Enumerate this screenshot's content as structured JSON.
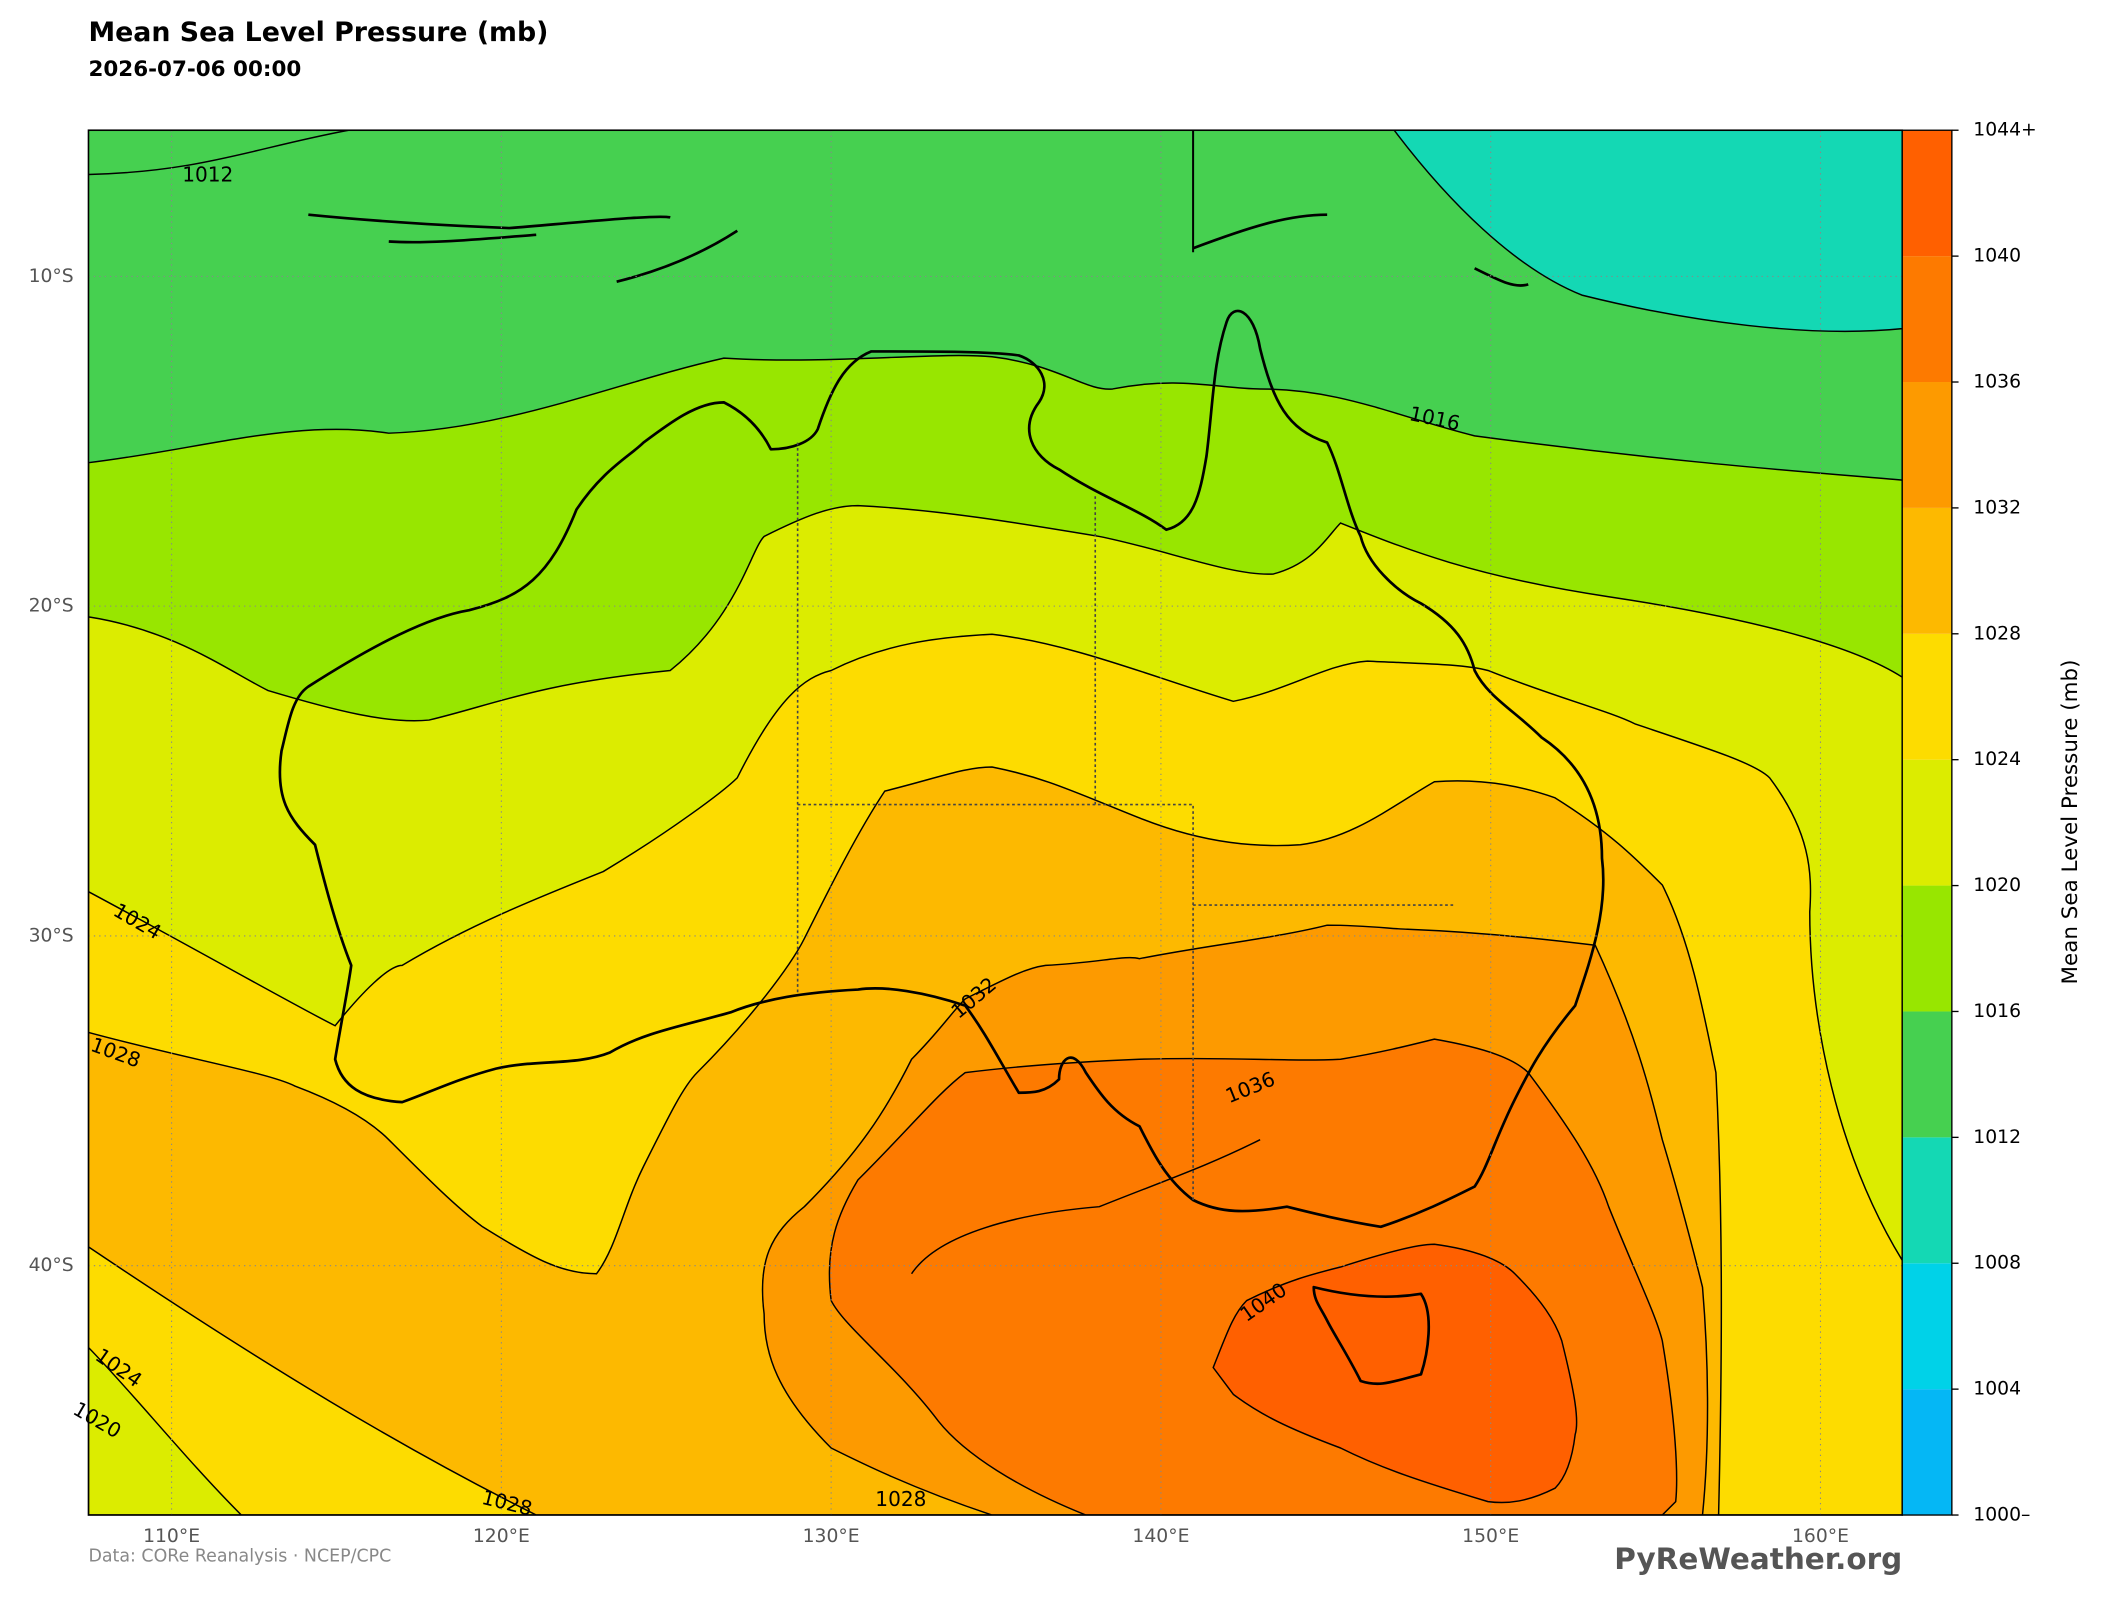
{
  "header": {
    "title": "Mean Sea Level Pressure (mb)",
    "subtitle": "2026-07-06 00:00"
  },
  "map": {
    "lat_labels": [
      "10°S",
      "20°S",
      "30°S",
      "40°S"
    ],
    "lon_labels": [
      "110°E",
      "120°E",
      "130°E",
      "140°E",
      "150°E",
      "160°E"
    ],
    "contour_labels": [
      "1012",
      "1016",
      "1024",
      "1028",
      "1032",
      "1036",
      "1040",
      "1024",
      "1028",
      "1028",
      "1020"
    ]
  },
  "colorbar": {
    "label": "Mean Sea Level Pressure (mb)",
    "ticks": [
      {
        "value": 1000,
        "label": "1000–"
      },
      1004,
      1008,
      1012,
      1016,
      1020,
      1024,
      1028,
      1032,
      1036,
      1040,
      {
        "value": 1044,
        "label": "1044+"
      }
    ],
    "colors": [
      "#05b7f5",
      "#00d2e8",
      "#14d8b4",
      "#46d050",
      "#98e600",
      "#dcec00",
      "#fddc00",
      "#fdb900",
      "#fd9a00",
      "#fd7a00",
      "#ff6000"
    ]
  },
  "footer": {
    "source": "Data: CORe Reanalysis  ·  NCEP/CPC",
    "brand": "PyReWeather.org"
  }
}
